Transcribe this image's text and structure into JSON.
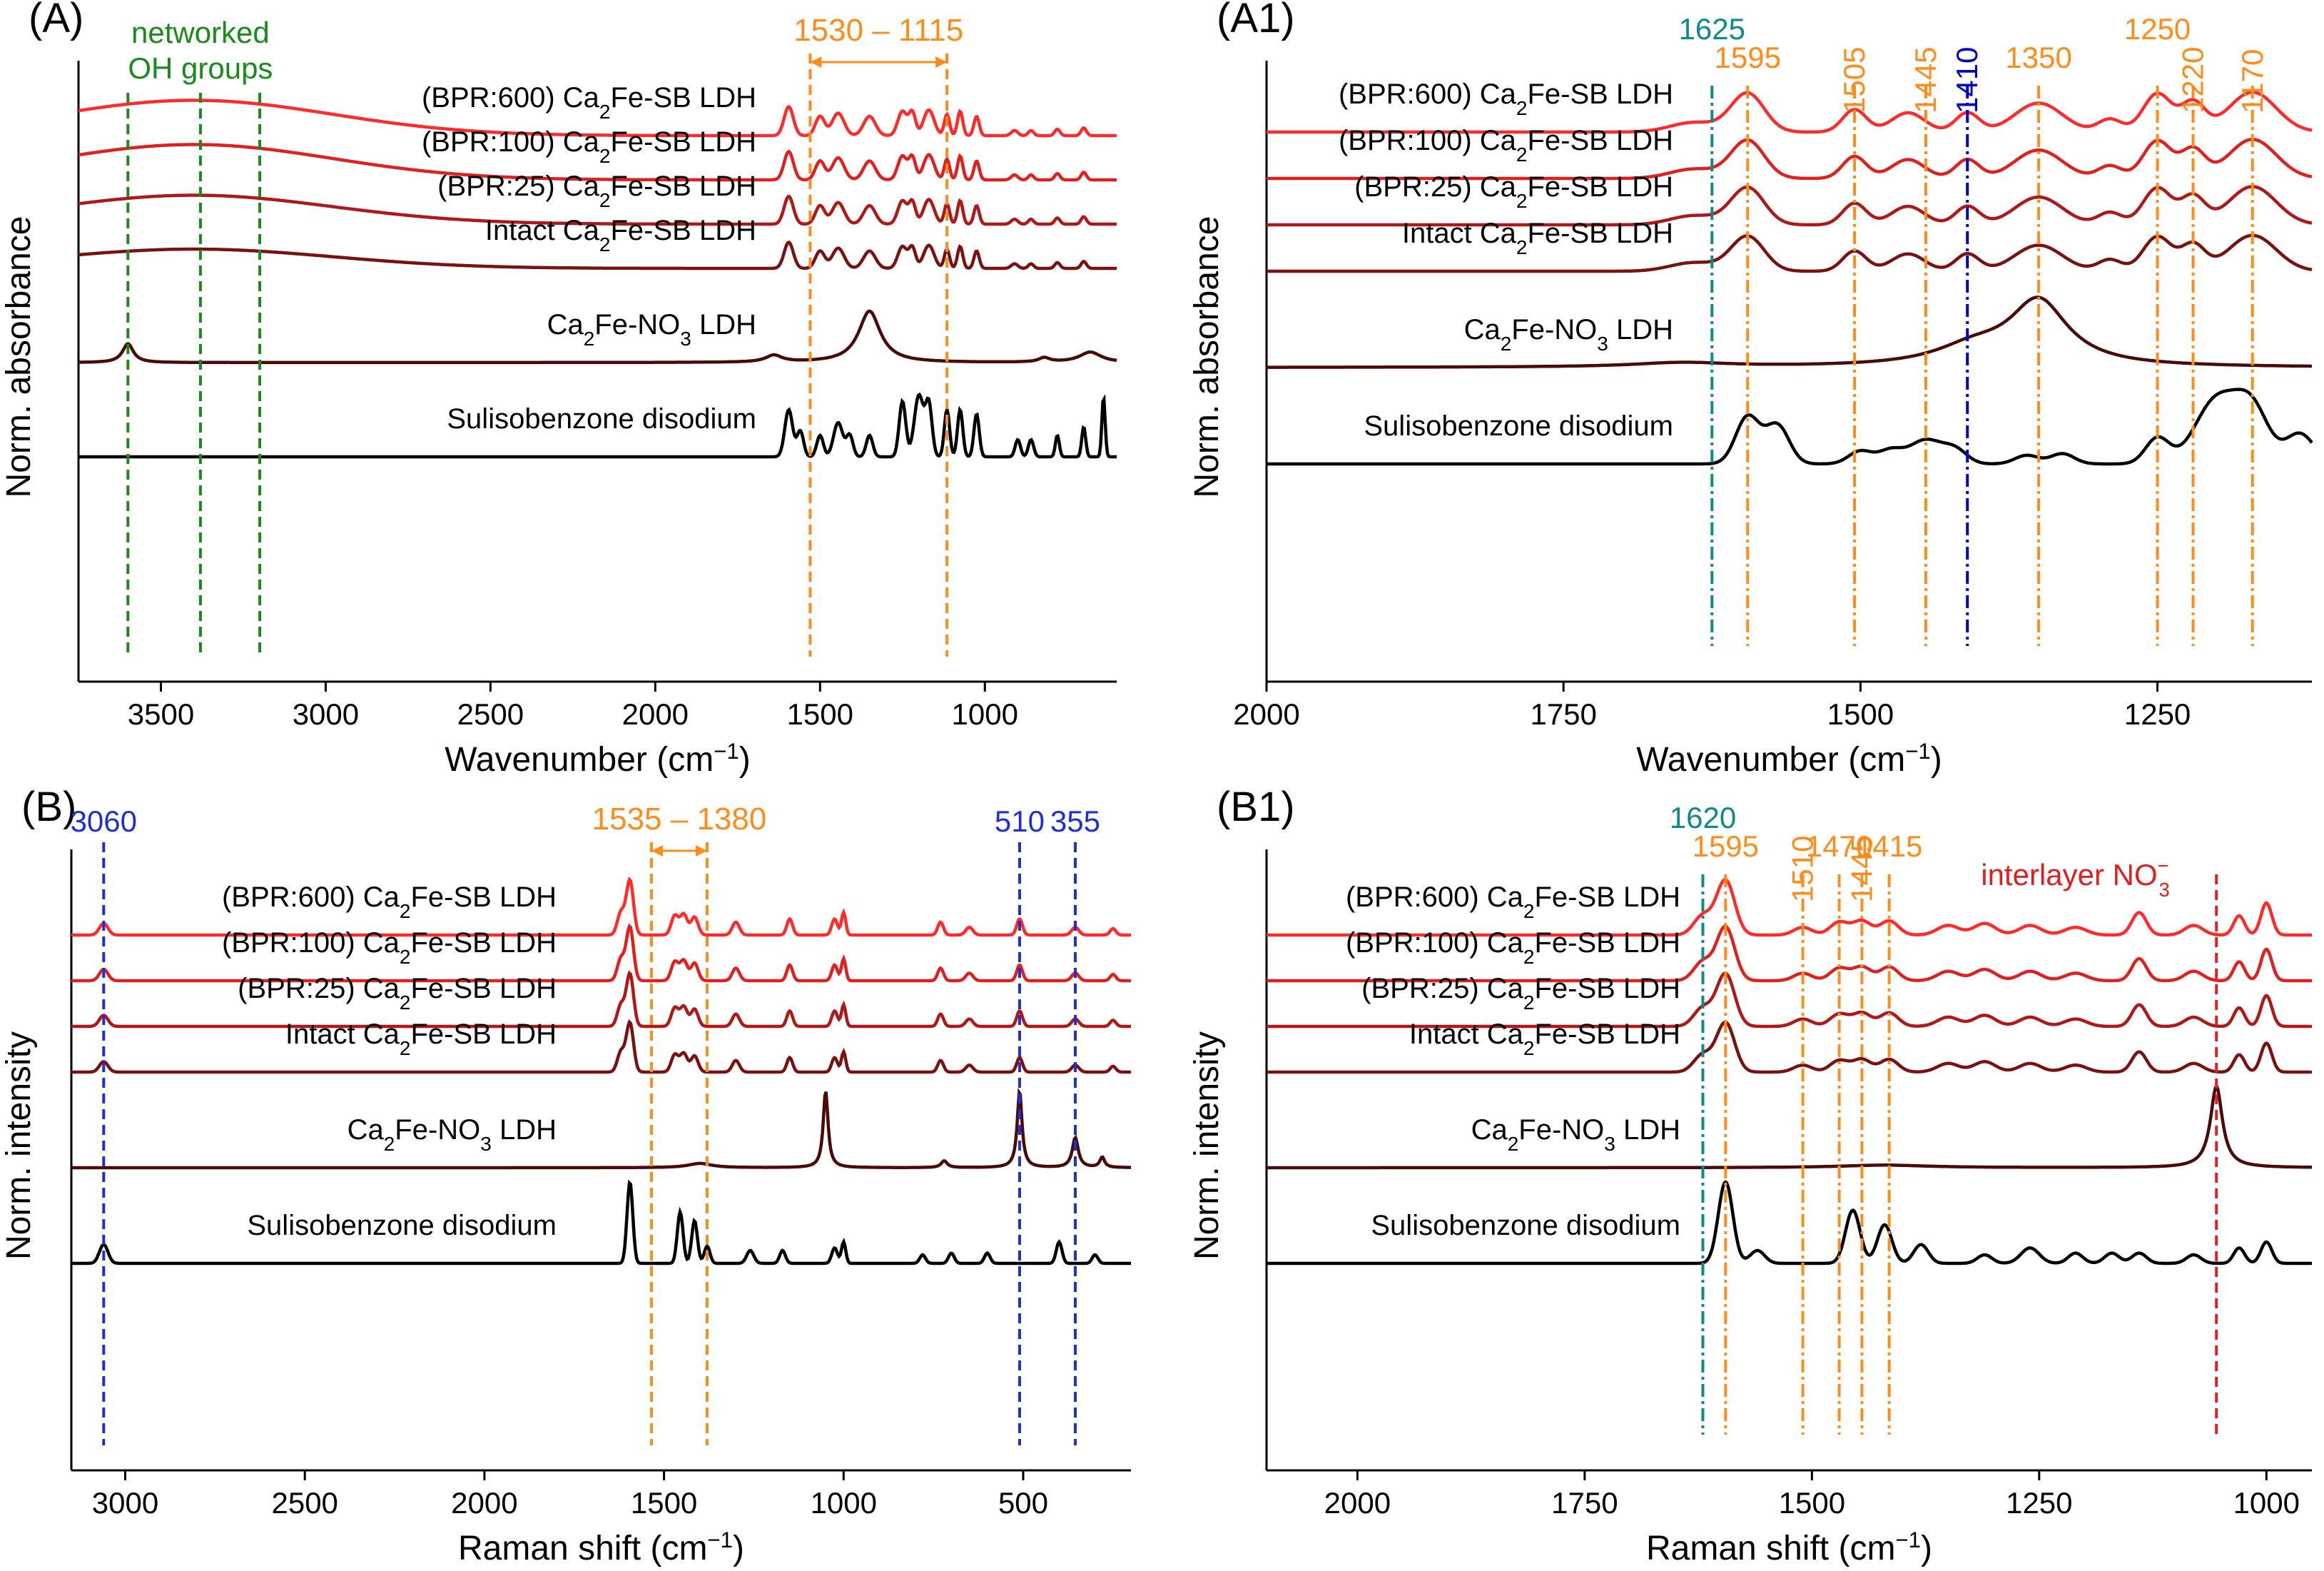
{
  "colors": {
    "axis": "#000000",
    "orange": "#ff8c1a",
    "green": "#1a8a1a",
    "blue": "#1f2fd6",
    "blue_dark": "#0000cc",
    "teal": "#0f8a8a",
    "red": "#e02020",
    "samples": [
      "#ff2a2a",
      "#e0201e",
      "#b01818",
      "#7a1010",
      "#4a0a0a",
      "#000000"
    ]
  },
  "chart_data": [
    {
      "id": "A",
      "type": "line",
      "panel_label": "(A)",
      "xlabel": "Wavenumber (cm",
      "xlabel_sup": "−1",
      "ylabel": "Norm. absorbance",
      "xlim": [
        3750,
        600
      ],
      "x_ticks": [
        3500,
        3000,
        2500,
        2000,
        1500,
        1000
      ],
      "tick_labels": [
        "3500",
        "3000",
        "2500",
        "2000",
        "1500",
        "1000"
      ],
      "series": [
        {
          "name": "(BPR:600) Ca2Fe-SB LDH",
          "label_parts": [
            "(BPR:600) Ca",
            "2",
            "Fe-SB LDH"
          ],
          "color_index": 0
        },
        {
          "name": "(BPR:100) Ca2Fe-SB LDH",
          "label_parts": [
            "(BPR:100) Ca",
            "2",
            "Fe-SB LDH"
          ],
          "color_index": 1
        },
        {
          "name": "(BPR:25) Ca2Fe-SB LDH",
          "label_parts": [
            "(BPR:25) Ca",
            "2",
            "Fe-SB LDH"
          ],
          "color_index": 2
        },
        {
          "name": "Intact Ca2Fe-SB LDH",
          "label_parts": [
            "Intact Ca",
            "2",
            "Fe-SB LDH"
          ],
          "color_index": 3
        },
        {
          "name": "Ca2Fe-NO3 LDH",
          "label_parts": [
            "Ca",
            "2",
            "Fe-NO",
            "3",
            " LDH"
          ],
          "color_index": 4
        },
        {
          "name": "Sulisobenzone disodium",
          "label_parts": [
            "Sulisobenzone disodium"
          ],
          "color_index": 5
        }
      ],
      "guide_lines": [
        {
          "x": 3600,
          "color": "green"
        },
        {
          "x": 3380,
          "color": "green"
        },
        {
          "x": 3200,
          "color": "green"
        },
        {
          "x": 1530,
          "color": "orange"
        },
        {
          "x": 1115,
          "color": "orange"
        }
      ],
      "annotations": {
        "region_label": "1530 – 1115",
        "region_from": 1530,
        "region_to": 1115,
        "oh_label_line1": "networked",
        "oh_label_line2": "OH groups"
      }
    },
    {
      "id": "A1",
      "type": "line",
      "panel_label": "(A1)",
      "xlabel": "Wavenumber (cm",
      "xlabel_sup": "−1",
      "ylabel": "Norm. absorbance",
      "xlim": [
        2000,
        1120
      ],
      "x_ticks": [
        2000,
        1750,
        1500,
        1250
      ],
      "tick_labels": [
        "2000",
        "1750",
        "1500",
        "1250"
      ],
      "series": [
        {
          "name": "(BPR:600) Ca2Fe-SB LDH",
          "label_parts": [
            "(BPR:600) Ca",
            "2",
            "Fe-SB LDH"
          ],
          "color_index": 0
        },
        {
          "name": "(BPR:100) Ca2Fe-SB LDH",
          "label_parts": [
            "(BPR:100) Ca",
            "2",
            "Fe-SB LDH"
          ],
          "color_index": 1
        },
        {
          "name": "(BPR:25) Ca2Fe-SB LDH",
          "label_parts": [
            "(BPR:25) Ca",
            "2",
            "Fe-SB LDH"
          ],
          "color_index": 2
        },
        {
          "name": "Intact Ca2Fe-SB LDH",
          "label_parts": [
            "Intact Ca",
            "2",
            "Fe-SB LDH"
          ],
          "color_index": 3
        },
        {
          "name": "Ca2Fe-NO3 LDH",
          "label_parts": [
            "Ca",
            "2",
            "Fe-NO",
            "3",
            " LDH"
          ],
          "color_index": 4
        },
        {
          "name": "Sulisobenzone disodium",
          "label_parts": [
            "Sulisobenzone disodium"
          ],
          "color_index": 5
        }
      ],
      "peak_lines": [
        {
          "x": 1625,
          "label": "1625",
          "color": "teal"
        },
        {
          "x": 1595,
          "label": "1595",
          "color": "orange"
        },
        {
          "x": 1505,
          "label": "1505",
          "color": "orange",
          "rotated": true
        },
        {
          "x": 1445,
          "label": "1445",
          "color": "orange",
          "rotated": true
        },
        {
          "x": 1410,
          "label": "1410",
          "color": "blue_dark",
          "rotated": true
        },
        {
          "x": 1350,
          "label": "1350",
          "color": "orange"
        },
        {
          "x": 1250,
          "label": "1250",
          "color": "orange"
        },
        {
          "x": 1220,
          "label": "1220",
          "color": "orange",
          "rotated": true
        },
        {
          "x": 1170,
          "label": "1170",
          "color": "orange",
          "rotated": true
        }
      ]
    },
    {
      "id": "B",
      "type": "line",
      "panel_label": "(B)",
      "xlabel": "Raman shift (cm",
      "xlabel_sup": "−1",
      "ylabel": "Norm. intensity",
      "xlim": [
        3150,
        200
      ],
      "x_ticks": [
        3000,
        2500,
        2000,
        1500,
        1000,
        500
      ],
      "tick_labels": [
        "3000",
        "2500",
        "2000",
        "1500",
        "1000",
        "500"
      ],
      "series": [
        {
          "name": "(BPR:600) Ca2Fe-SB LDH",
          "label_parts": [
            "(BPR:600) Ca",
            "2",
            "Fe-SB LDH"
          ],
          "color_index": 0
        },
        {
          "name": "(BPR:100) Ca2Fe-SB LDH",
          "label_parts": [
            "(BPR:100) Ca",
            "2",
            "Fe-SB LDH"
          ],
          "color_index": 1
        },
        {
          "name": "(BPR:25) Ca2Fe-SB LDH",
          "label_parts": [
            "(BPR:25) Ca",
            "2",
            "Fe-SB LDH"
          ],
          "color_index": 2
        },
        {
          "name": "Intact Ca2Fe-SB LDH",
          "label_parts": [
            "Intact Ca",
            "2",
            "Fe-SB LDH"
          ],
          "color_index": 3
        },
        {
          "name": "Ca2Fe-NO3 LDH",
          "label_parts": [
            "Ca",
            "2",
            "Fe-NO",
            "3",
            " LDH"
          ],
          "color_index": 4
        },
        {
          "name": "Sulisobenzone disodium",
          "label_parts": [
            "Sulisobenzone disodium"
          ],
          "color_index": 5
        }
      ],
      "guide_lines": [
        {
          "x": 3060,
          "color": "blue"
        },
        {
          "x": 1535,
          "color": "orange"
        },
        {
          "x": 1380,
          "color": "orange"
        },
        {
          "x": 510,
          "color": "blue"
        },
        {
          "x": 355,
          "color": "blue"
        }
      ],
      "annotations": {
        "region_label": "1535 – 1380",
        "region_from": 1535,
        "region_to": 1380,
        "peak_labels": [
          {
            "x": 3060,
            "label": "3060",
            "color": "blue"
          },
          {
            "x": 510,
            "label": "510",
            "color": "blue"
          },
          {
            "x": 355,
            "label": "355",
            "color": "blue"
          }
        ]
      }
    },
    {
      "id": "B1",
      "type": "line",
      "panel_label": "(B1)",
      "xlabel": "Raman shift (cm",
      "xlabel_sup": "−1",
      "ylabel": "Norm. intensity",
      "xlim": [
        2100,
        950
      ],
      "x_ticks": [
        2000,
        1750,
        1500,
        1250,
        1000
      ],
      "tick_labels": [
        "2000",
        "1750",
        "1500",
        "1250",
        "1000"
      ],
      "series": [
        {
          "name": "(BPR:600) Ca2Fe-SB LDH",
          "label_parts": [
            "(BPR:600) Ca",
            "2",
            "Fe-SB LDH"
          ],
          "color_index": 0
        },
        {
          "name": "(BPR:100) Ca2Fe-SB LDH",
          "label_parts": [
            "(BPR:100) Ca",
            "2",
            "Fe-SB LDH"
          ],
          "color_index": 1
        },
        {
          "name": "(BPR:25) Ca2Fe-SB LDH",
          "label_parts": [
            "(BPR:25) Ca",
            "2",
            "Fe-SB LDH"
          ],
          "color_index": 2
        },
        {
          "name": "Intact Ca2Fe-SB LDH",
          "label_parts": [
            "Intact Ca",
            "2",
            "Fe-SB LDH"
          ],
          "color_index": 3
        },
        {
          "name": "Ca2Fe-NO3 LDH",
          "label_parts": [
            "Ca",
            "2",
            "Fe-NO",
            "3",
            " LDH"
          ],
          "color_index": 4
        },
        {
          "name": "Sulisobenzone disodium",
          "label_parts": [
            "Sulisobenzone disodium"
          ],
          "color_index": 5
        }
      ],
      "peak_lines": [
        {
          "x": 1620,
          "label": "1620",
          "color": "teal"
        },
        {
          "x": 1595,
          "label": "1595",
          "color": "orange"
        },
        {
          "x": 1510,
          "label": "1510",
          "color": "orange",
          "rotated": true
        },
        {
          "x": 1470,
          "label": "1470",
          "color": "orange"
        },
        {
          "x": 1445,
          "label": "1445",
          "color": "orange",
          "rotated": true
        },
        {
          "x": 1415,
          "label": "1415",
          "color": "orange"
        },
        {
          "x": 1055,
          "label": "interlayer NO",
          "sup": "−",
          "sub": "3",
          "color": "red"
        }
      ]
    }
  ]
}
